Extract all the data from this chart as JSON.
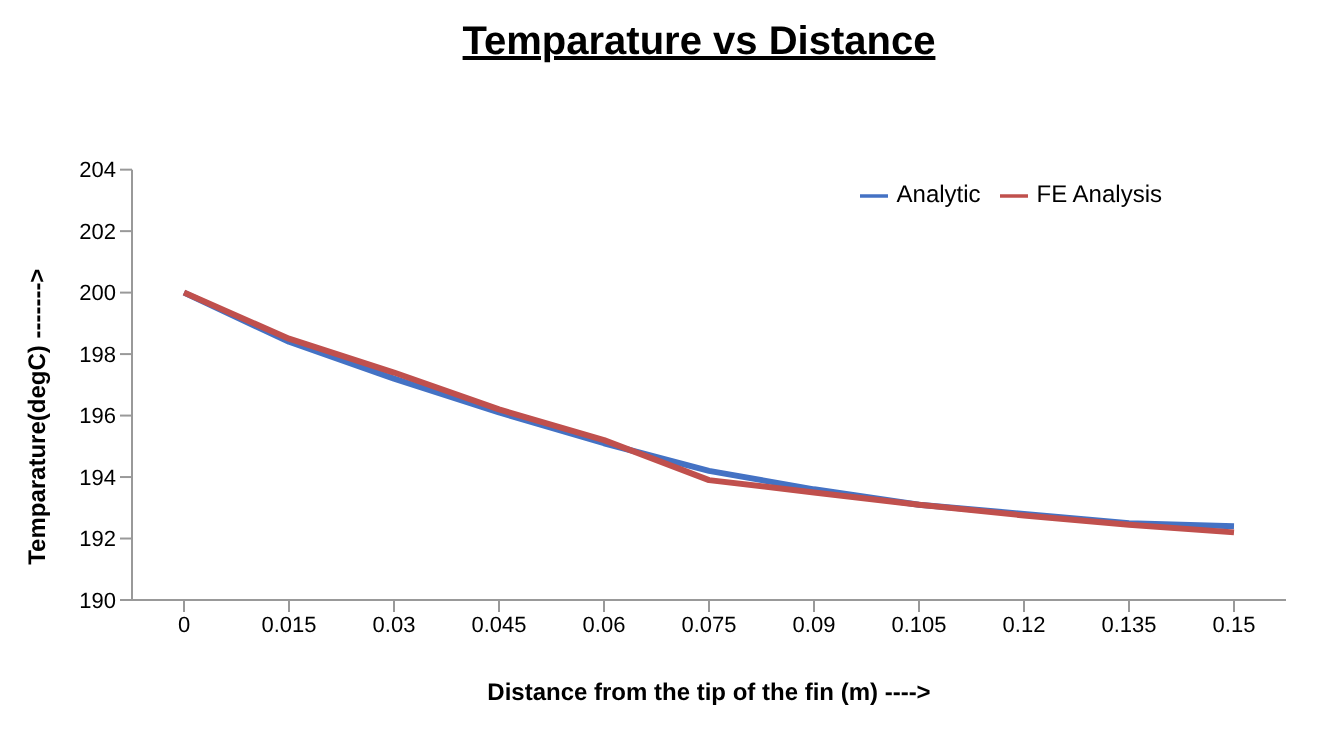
{
  "chart_data": {
    "type": "line",
    "title": "Temparature vs Distance",
    "xlabel": "Distance from the tip of the fin (m) ---->",
    "ylabel": "Temparature(degC)  ------->",
    "categories": [
      "0",
      "0.015",
      "0.03",
      "0.045",
      "0.06",
      "0.075",
      "0.09",
      "0.105",
      "0.12",
      "0.135",
      "0.15"
    ],
    "series": [
      {
        "name": "Analytic",
        "color": "#4472c4",
        "values": [
          200,
          198.4,
          197.2,
          196.1,
          195.1,
          194.2,
          193.6,
          193.1,
          192.8,
          192.5,
          192.4
        ]
      },
      {
        "name": "FE Analysis",
        "color": "#c0504d",
        "values": [
          200,
          198.5,
          197.4,
          196.2,
          195.2,
          193.9,
          193.5,
          193.1,
          192.75,
          192.45,
          192.2
        ]
      }
    ],
    "ylim": [
      190,
      204
    ],
    "yticks": [
      190,
      192,
      194,
      196,
      198,
      200,
      202,
      204
    ],
    "grid": false,
    "legend": "top right",
    "marker": "none",
    "line_style": "solid"
  }
}
